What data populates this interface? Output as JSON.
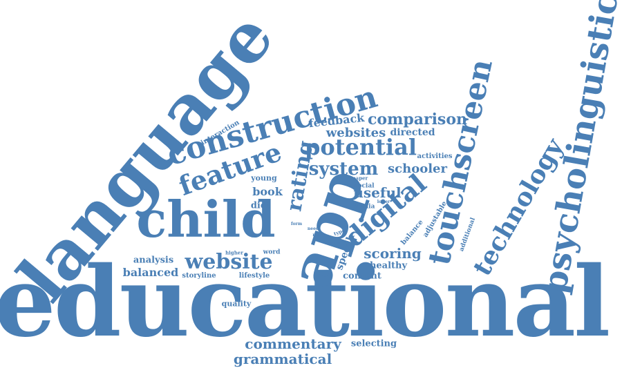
{
  "cloud": {
    "color": "#4a7fb5",
    "background": "#ffffff",
    "words": {
      "educational": "educational",
      "language": "language",
      "child": "child",
      "app": "app",
      "psycholinguistic": "psycholinguistic",
      "touchscreen": "touchscreen",
      "construction": "construction",
      "technology": "technology",
      "digital": "digital",
      "feature": "feature",
      "potential": "potential",
      "website": "website",
      "rating": "rating",
      "system": "system",
      "comparison": "comparison",
      "grammatical": "grammatical",
      "commentary": "commentary",
      "scoring": "scoring",
      "useful": "useful",
      "websites": "websites",
      "schooler": "schooler",
      "feedback": "feedback",
      "directed": "directed",
      "book": "book",
      "balanced": "balanced",
      "analysis": "analysis",
      "healthy": "healthy",
      "content": "content",
      "speech": "speech",
      "selecting": "selecting",
      "diet": "diet",
      "storyline": "storyline",
      "lifestyle": "lifestyle",
      "quality": "quality",
      "young": "young",
      "interaction": "interaction",
      "activities": "activities",
      "adjustable": "adjustable",
      "balance": "balance",
      "additional": "additional",
      "social": "social",
      "media": "media",
      "word": "word",
      "higher": "higher",
      "paper": "paper",
      "lower": "lower",
      "form": "form",
      "need": "need",
      "more": "more",
      "type": "type",
      "input": "input"
    }
  }
}
